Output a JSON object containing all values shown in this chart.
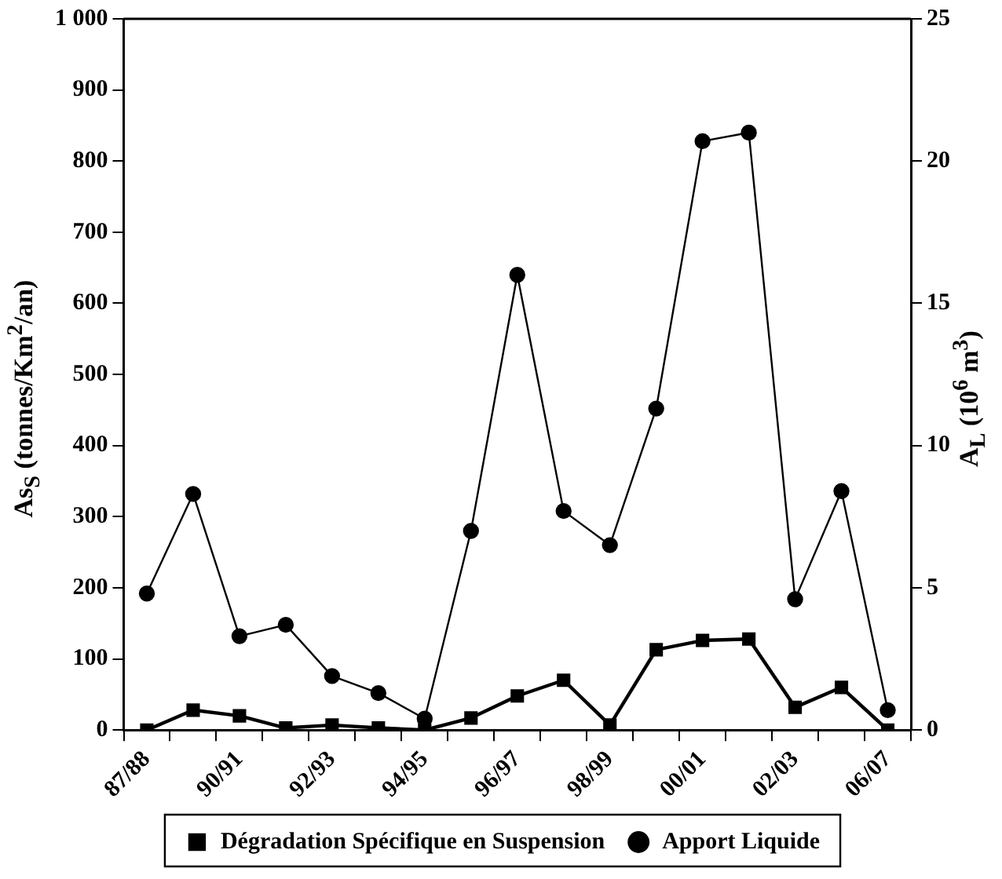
{
  "chart_data": {
    "type": "line",
    "ylabel": "As$_{S}$ (tonnes/Km$^{2}$/an)",
    "y2label": "A$_{L}$ (10$^{6}$ m$^{3}$)",
    "categories": [
      "87/88",
      null,
      "90/91",
      null,
      "92/93",
      null,
      "94/95",
      null,
      "96/97",
      null,
      "98/99",
      null,
      "00/01",
      null,
      "02/03",
      null,
      "06/07"
    ],
    "series": [
      {
        "name": "Dégradation Spécifique en Suspension",
        "color": "#000000",
        "marker": "square",
        "values": [
          0,
          28,
          20,
          3,
          7,
          3,
          0,
          17,
          48,
          70,
          7,
          113,
          126,
          128,
          32,
          60,
          0
        ]
      },
      {
        "name": "Apport Liquide",
        "color": "#000000",
        "marker": "circle",
        "axis": "y2",
        "values": [
          4.8,
          8.3,
          3.3,
          3.7,
          1.9,
          1.3,
          0.4,
          7.0,
          16.0,
          7.7,
          6.5,
          11.3,
          20.7,
          21.0,
          4.6,
          8.4,
          0.7
        ]
      }
    ],
    "ylim": [
      0,
      1000
    ],
    "yticks": [
      0,
      100,
      200,
      300,
      400,
      500,
      600,
      700,
      800,
      900,
      {
        "value": 1000,
        "label": "1 000"
      }
    ],
    "y2lim": [
      0,
      25
    ],
    "y2ticks": [
      0,
      5,
      10,
      15,
      20,
      25
    ],
    "grid": false,
    "legend": "bottom"
  }
}
